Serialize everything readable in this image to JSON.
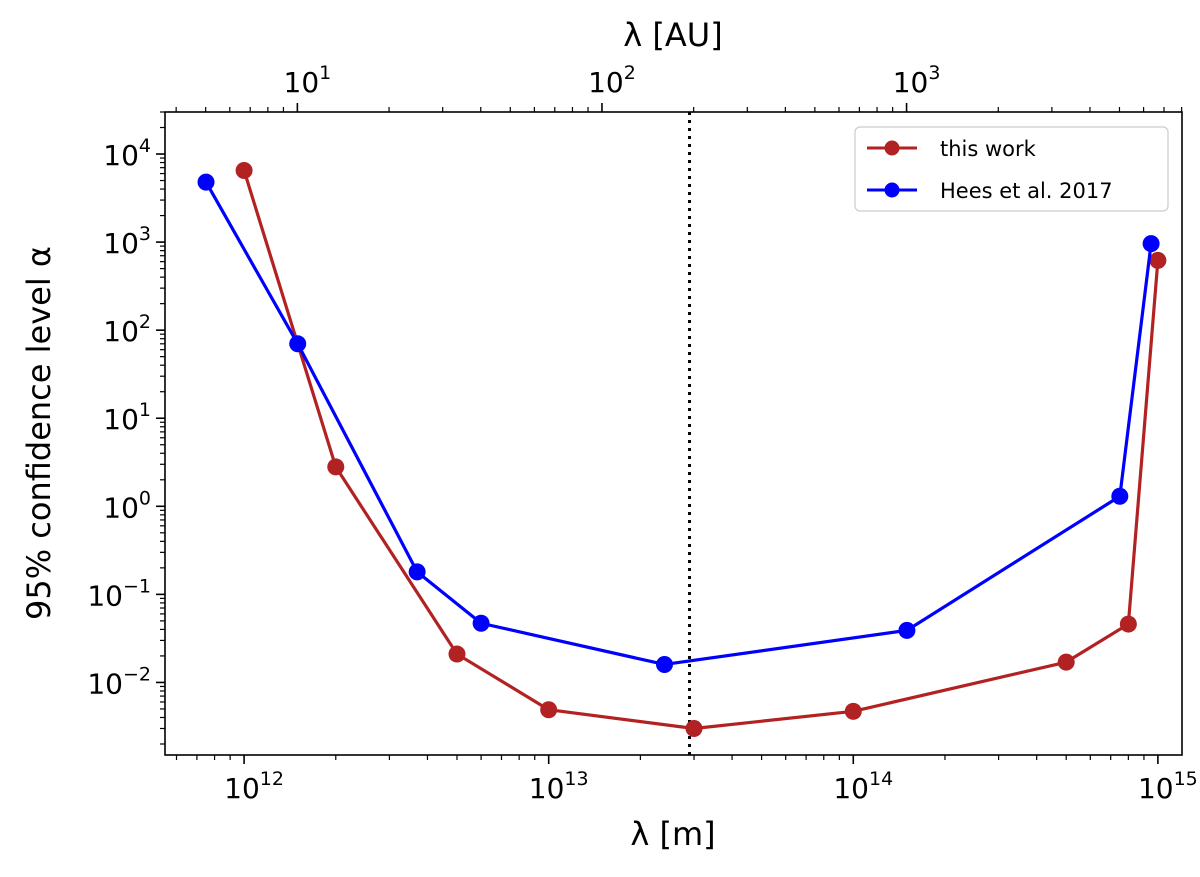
{
  "chart_data": {
    "type": "line",
    "xscale": "log",
    "yscale": "log",
    "xlabel": "λ [m]",
    "ylabel": "95% confidence level α",
    "top_xlabel": "λ [AU]",
    "xlim": [
      550000000000.0,
      1200000000000000.0
    ],
    "ylim": [
      0.0015,
      30000
    ],
    "x_ticks": [
      {
        "value": 1000000000000.0,
        "base": "10",
        "exp": "12"
      },
      {
        "value": 10000000000000.0,
        "base": "10",
        "exp": "13"
      },
      {
        "value": 100000000000000.0,
        "base": "10",
        "exp": "14"
      },
      {
        "value": 1000000000000000.0,
        "base": "10",
        "exp": "15"
      }
    ],
    "top_ticks": [
      {
        "value_au": 10,
        "base": "10",
        "exp": "1"
      },
      {
        "value_au": 100,
        "base": "10",
        "exp": "2"
      },
      {
        "value_au": 1000,
        "base": "10",
        "exp": "3"
      }
    ],
    "au_in_m": 149600000000.0,
    "y_ticks": [
      {
        "value": 0.01,
        "base": "10",
        "exp": "−2"
      },
      {
        "value": 0.1,
        "base": "10",
        "exp": "−1"
      },
      {
        "value": 1,
        "base": "10",
        "exp": "0"
      },
      {
        "value": 10,
        "base": "10",
        "exp": "1"
      },
      {
        "value": 100,
        "base": "10",
        "exp": "2"
      },
      {
        "value": 1000,
        "base": "10",
        "exp": "3"
      },
      {
        "value": 10000,
        "base": "10",
        "exp": "4"
      }
    ],
    "vline": {
      "x": 29000000000000.0,
      "style": "dotted"
    },
    "series": [
      {
        "name": "this work",
        "color": "#b22222",
        "points": [
          [
            1000000000000.0,
            6500
          ],
          [
            2000000000000.0,
            2.8
          ],
          [
            5000000000000.0,
            0.021
          ],
          [
            10000000000000.0,
            0.0049
          ],
          [
            30000000000000.0,
            0.003
          ],
          [
            100000000000000.0,
            0.0047
          ],
          [
            500000000000000.0,
            0.017
          ],
          [
            800000000000000.0,
            0.046
          ],
          [
            1000000000000000.0,
            620
          ]
        ]
      },
      {
        "name": "Hees et al. 2017",
        "color": "#0000ff",
        "points": [
          [
            750000000000.0,
            4800
          ],
          [
            1500000000000.0,
            70
          ],
          [
            3700000000000.0,
            0.18
          ],
          [
            6000000000000.0,
            0.047
          ],
          [
            24000000000000.0,
            0.016
          ],
          [
            150000000000000.0,
            0.039
          ],
          [
            750000000000000.0,
            1.3
          ],
          [
            950000000000000.0,
            960
          ]
        ]
      }
    ],
    "legend_position": "top-right"
  }
}
